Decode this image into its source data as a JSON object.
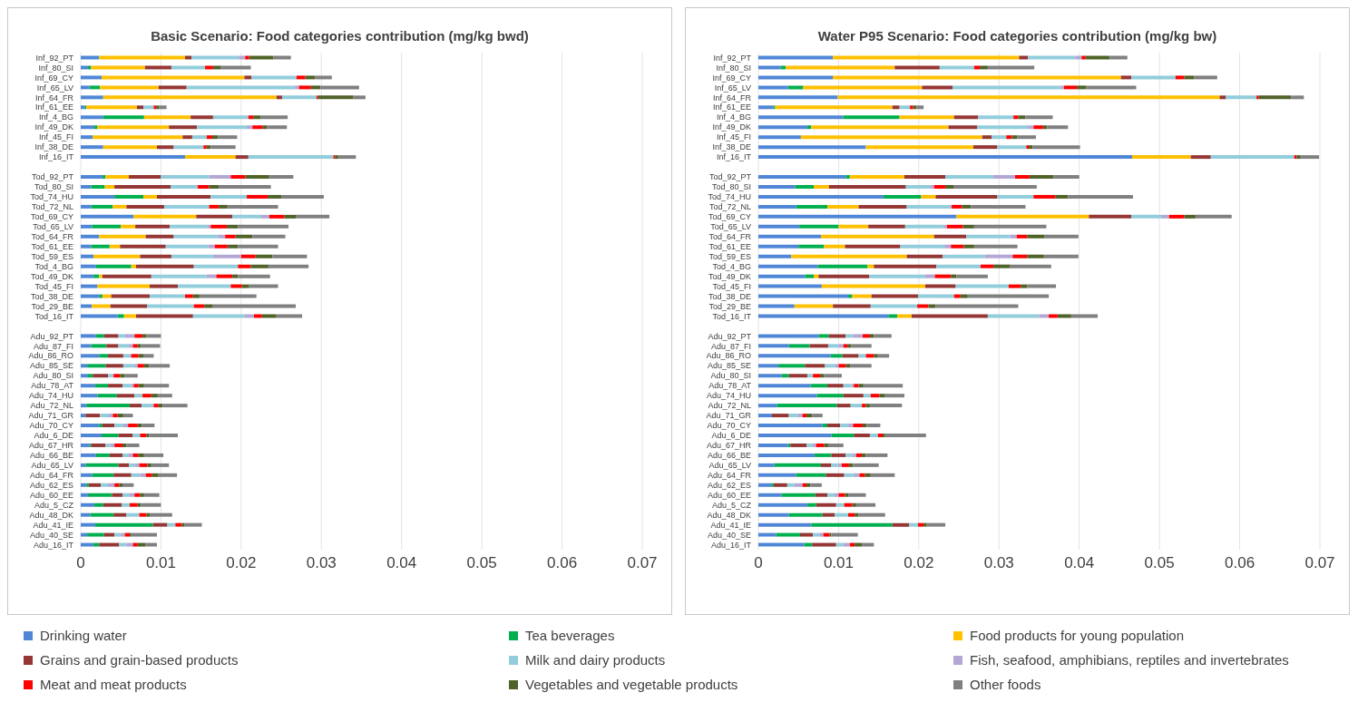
{
  "chart_data": [
    {
      "type": "bar",
      "orientation": "horizontal",
      "stacked": true,
      "title": "Basic Scenario: Food categories contribution (mg/kg bwd)",
      "categories": [
        "Inf_92_PT",
        "Inf_80_SI",
        "Inf_69_CY",
        "Inf_65_LV",
        "Inf_64_FR",
        "Inf_61_EE",
        "Inf_4_BG",
        "Inf_49_DK",
        "Inf_45_FI",
        "Inf_38_DE",
        "Inf_16_IT",
        null,
        "Tod_92_PT",
        "Tod_80_SI",
        "Tod_74_HU",
        "Tod_72_NL",
        "Tod_69_CY",
        "Tod_65_LV",
        "Tod_64_FR",
        "Tod_61_EE",
        "Tod_59_ES",
        "Tod_4_BG",
        "Tod_49_DK",
        "Tod_45_FI",
        "Tod_38_DE",
        "Tod_29_BE",
        "Tod_16_IT",
        null,
        "Adu_92_PT",
        "Adu_87_FI",
        "Adu_86_RO",
        "Adu_85_SE",
        "Adu_80_SI",
        "Adu_78_AT",
        "Adu_74_HU",
        "Adu_72_NL",
        "Adu_71_GR",
        "Adu_70_CY",
        "Adu_6_DE",
        "Adu_67_HR",
        "Adu_66_BE",
        "Adu_65_LV",
        "Adu_64_FR",
        "Adu_62_ES",
        "Adu_60_EE",
        "Adu_5_CZ",
        "Adu_48_DK",
        "Adu_41_IE",
        "Adu_40_SE",
        "Adu_16_IT"
      ],
      "series": [
        {
          "name": "Drinking water",
          "color": "#4f87d6",
          "values": [
            0.0023,
            0.0009,
            0.0026,
            0.0011,
            0.0028,
            0.0005,
            0.0028,
            0.0017,
            0.0015,
            0.0028,
            0.013,
            null,
            0.0027,
            0.0013,
            0.0042,
            0.0013,
            0.0066,
            0.0014,
            0.0023,
            0.0013,
            0.0016,
            0.0019,
            0.0016,
            0.0021,
            0.0023,
            0.0014,
            0.0046,
            null,
            0.0019,
            0.0013,
            0.0023,
            0.0008,
            0.0009,
            0.0018,
            0.0021,
            0.0007,
            0.0006,
            0.0023,
            0.0026,
            0.0011,
            0.0019,
            0.0006,
            0.0014,
            0.0007,
            0.0009,
            0.0017,
            0.0012,
            0.0018,
            0.0008,
            0.0016
          ]
        },
        {
          "name": "Tea beverages",
          "color": "#00b050",
          "values": [
            0,
            0.0004,
            0,
            0.0013,
            0,
            0.0002,
            0.0051,
            0.0004,
            0,
            0,
            0,
            null,
            0.0004,
            0.0017,
            0.0036,
            0.0027,
            0,
            0.0036,
            0,
            0.0023,
            0,
            0.0044,
            0.0007,
            0,
            0.0004,
            0,
            0.0008,
            null,
            0.001,
            0.0019,
            0.0011,
            0.0023,
            0.0006,
            0.0016,
            0.0024,
            0.0054,
            0,
            0.0004,
            0.0021,
            0.0002,
            0.0017,
            0.0041,
            0.0027,
            0.0003,
            0.003,
            0.0011,
            0.0029,
            0.0072,
            0.0021,
            0.0007
          ]
        },
        {
          "name": "Food products for young population",
          "color": "#ffc000",
          "values": [
            0.0107,
            0.0067,
            0.0178,
            0.0073,
            0.0216,
            0.0063,
            0.0058,
            0.0089,
            0.0112,
            0.0067,
            0.0063,
            null,
            0.0029,
            0.0012,
            0.0017,
            0.0017,
            0.0078,
            0.0018,
            0.0058,
            0.0013,
            0.0058,
            0.0006,
            0.0004,
            0.0065,
            0.0011,
            0.0023,
            0.0015,
            null,
            0,
            0,
            0,
            0,
            0,
            0,
            0,
            0,
            0,
            0,
            0,
            0,
            0,
            0,
            0,
            0,
            0,
            0,
            0,
            0,
            0,
            0
          ]
        },
        {
          "name": "Grains and grain-based products",
          "color": "#953735",
          "values": [
            0.0008,
            0.0033,
            0.0009,
            0.0035,
            0.0007,
            0.0008,
            0.0028,
            0.0035,
            0.0012,
            0.0021,
            0.0016,
            null,
            0.004,
            0.007,
            0.0067,
            0.0047,
            0.0045,
            0.0043,
            0.0035,
            0.0057,
            0.0039,
            0.0072,
            0.0061,
            0.0035,
            0.0048,
            0.0046,
            0.0071,
            null,
            0.0018,
            0.0015,
            0.0019,
            0.0022,
            0.0019,
            0.0018,
            0.0022,
            0.0015,
            0.0018,
            0.0015,
            0.0018,
            0.0018,
            0.0016,
            0.0013,
            0.0022,
            0.0015,
            0.0013,
            0.0023,
            0.0016,
            0.0018,
            0.0013,
            0.0025
          ]
        },
        {
          "name": "Milk and dairy products",
          "color": "#92cddc",
          "values": [
            0.0059,
            0.0042,
            0.0056,
            0.0135,
            0.0043,
            0.0013,
            0.0044,
            0.0062,
            0.0018,
            0.0037,
            0.0106,
            null,
            0.006,
            0.0032,
            0.0045,
            0.0056,
            0.0036,
            0.0047,
            0.0055,
            0.0053,
            0.0052,
            0.0055,
            0.0069,
            0.0066,
            0.0044,
            0.0058,
            0.0064,
            null,
            0.0008,
            0.0013,
            0.0008,
            0.0014,
            0.0005,
            0.0011,
            0.001,
            0.0013,
            0.0011,
            0.0011,
            0.0009,
            0.0006,
            0.0007,
            0.0008,
            0.0011,
            0.0009,
            0.0009,
            0.001,
            0.0016,
            0.001,
            0.0008,
            0.0009
          ]
        },
        {
          "name": "Fish, seafood, amphibians, reptiles and invertebrates",
          "color": "#b4a7d6",
          "values": [
            0.0008,
            0,
            0,
            0.0005,
            0,
            0,
            0,
            0.0007,
            0,
            0,
            0,
            null,
            0.0027,
            0.0002,
            0,
            0,
            0.001,
            0.0004,
            0.0009,
            0.0008,
            0.0035,
            0,
            0.0012,
            0,
            0,
            0,
            0.0012,
            null,
            0.0012,
            0.0005,
            0.0002,
            0.0004,
            0.0002,
            0.0003,
            0,
            0.0002,
            0.0005,
            0.0006,
            0,
            0.0005,
            0.0006,
            0.0005,
            0.0007,
            0.0008,
            0.0006,
            0,
            0,
            0,
            0.0005,
            0.0008
          ]
        },
        {
          "name": "Meat and meat products",
          "color": "#ff0000",
          "values": [
            0.0005,
            0.001,
            0.0011,
            0.0015,
            0.0002,
            0.0003,
            0.0006,
            0.0013,
            0.0007,
            0.0004,
            0.0002,
            null,
            0.0018,
            0.0014,
            0.0026,
            0.0012,
            0.0019,
            0.002,
            0.0013,
            0.0016,
            0.0018,
            0.0016,
            0.002,
            0.0014,
            0.001,
            0.0013,
            0.001,
            null,
            0.001,
            0.0006,
            0.0009,
            0.0008,
            0.0008,
            0.0006,
            0.0011,
            0.0006,
            0.0006,
            0.0012,
            0.0008,
            0.001,
            0.0007,
            0.001,
            0.0008,
            0.0006,
            0.0007,
            0.001,
            0.0009,
            0.0008,
            0.0006,
            0.0006
          ]
        },
        {
          "name": "Vegetables and vegetable products",
          "color": "#4f6228",
          "values": [
            0.003,
            0.001,
            0.0012,
            0.0012,
            0.0044,
            0.0004,
            0.0009,
            0.0005,
            0.0007,
            0.0005,
            0.0004,
            null,
            0.003,
            0.0012,
            0.0017,
            0.0011,
            0.0014,
            0.0014,
            0.0021,
            0.0013,
            0.0021,
            0.0022,
            0.0007,
            0.0009,
            0.0008,
            0.001,
            0.0018,
            null,
            0.0005,
            0.0004,
            0.0006,
            0.0006,
            0.0006,
            0.0007,
            0.0008,
            0.0005,
            0.0007,
            0.0005,
            0.0003,
            0.0005,
            0.0007,
            0.0005,
            0.0008,
            0.0004,
            0.0005,
            0.0004,
            0.0004,
            0.0003,
            0.0002,
            0.001
          ]
        },
        {
          "name": "Other foods",
          "color": "#808080",
          "values": [
            0.0022,
            0.0037,
            0.0021,
            0.0048,
            0.0015,
            0.0009,
            0.0034,
            0.0025,
            0.0024,
            0.0031,
            0.0022,
            null,
            0.003,
            0.0065,
            0.0053,
            0.0063,
            0.0042,
            0.0063,
            0.0041,
            0.005,
            0.0043,
            0.005,
            0.004,
            0.0036,
            0.0071,
            0.0104,
            0.0032,
            null,
            0.0018,
            0.0024,
            0.0013,
            0.0026,
            0.0016,
            0.0031,
            0.0018,
            0.0031,
            0.0012,
            0.0016,
            0.0036,
            0.0016,
            0.0024,
            0.0022,
            0.0023,
            0.0014,
            0.0019,
            0.0025,
            0.0028,
            0.0022,
            0.0032,
            0.0014
          ]
        }
      ],
      "xlim": [
        0,
        0.07
      ],
      "xticks": [
        0,
        0.01,
        0.02,
        0.03,
        0.04,
        0.05,
        0.06,
        0.07
      ],
      "grid": "x",
      "legend": "bottom"
    },
    {
      "type": "bar",
      "orientation": "horizontal",
      "stacked": true,
      "title": "Water P95 Scenario: Food categories contribution (mg/kg bw)",
      "categories": [
        "Inf_92_PT",
        "Inf_80_SI",
        "Inf_69_CY",
        "Inf_65_LV",
        "Inf_64_FR",
        "Inf_61_EE",
        "Inf_4_BG",
        "Inf_49_DK",
        "Inf_45_FI",
        "Inf_38_DE",
        "Inf_16_IT",
        null,
        "Tod_92_PT",
        "Tod_80_SI",
        "Tod_74_HU",
        "Tod_72_NL",
        "Tod_69_CY",
        "Tod_65_LV",
        "Tod_64_FR",
        "Tod_61_EE",
        "Tod_59_ES",
        "Tod_4_BG",
        "Tod_49_DK",
        "Tod_45_FI",
        "Tod_38_DE",
        "Tod_29_BE",
        "Tod_16_IT",
        null,
        "Adu_92_PT",
        "Adu_87_FI",
        "Adu_86_RO",
        "Adu_85_SE",
        "Adu_80_SI",
        "Adu_78_AT",
        "Adu_74_HU",
        "Adu_72_NL",
        "Adu_71_GR",
        "Adu_70_CY",
        "Adu_6_DE",
        "Adu_67_HR",
        "Adu_66_BE",
        "Adu_65_LV",
        "Adu_64_FR",
        "Adu_62_ES",
        "Adu_60_EE",
        "Adu_5_CZ",
        "Adu_48_DK",
        "Adu_41_IE",
        "Adu_40_SE",
        "Adu_16_IT"
      ],
      "series": [
        {
          "color": "#4f87d6",
          "values": [
            0.0093,
            0.0028,
            0.0093,
            0.0037,
            0.0099,
            0.0019,
            0.0106,
            0.0061,
            0.0053,
            0.0134,
            0.0466,
            null,
            0.0109,
            0.0046,
            0.0156,
            0.0047,
            0.0247,
            0.0051,
            0.0078,
            0.005,
            0.0041,
            0.0074,
            0.0058,
            0.0079,
            0.0112,
            0.0045,
            0.0162,
            null,
            0.0075,
            0.0038,
            0.009,
            0.0025,
            0.0029,
            0.0065,
            0.0073,
            0.0023,
            0.0017,
            0.008,
            0.0091,
            0.0037,
            0.007,
            0.002,
            0.0047,
            0.0016,
            0.0029,
            0.0061,
            0.0038,
            0.0066,
            0.0022,
            0.0057
          ]
        },
        {
          "color": "#00b050",
          "values": [
            0,
            0.0006,
            0,
            0.0019,
            0,
            0.0002,
            0.007,
            0.0005,
            0,
            0,
            0,
            null,
            0.0005,
            0.0023,
            0.0047,
            0.0039,
            0,
            0.0049,
            0,
            0.0032,
            0,
            0.0062,
            0.0011,
            0,
            0.0005,
            0,
            0.0011,
            null,
            0.0013,
            0.0026,
            0.0015,
            0.0033,
            0.0009,
            0.0021,
            0.0033,
            0.0075,
            0,
            0.0006,
            0.0028,
            0.0003,
            0.0021,
            0.0058,
            0.0037,
            0.0003,
            0.0042,
            0.0011,
            0.0042,
            0.0101,
            0.003,
            0.001
          ]
        },
        {
          "color": "#ffc000",
          "values": [
            0.0232,
            0.0136,
            0.0359,
            0.0148,
            0.0476,
            0.0146,
            0.0068,
            0.0171,
            0.0226,
            0.0134,
            0.0073,
            null,
            0.0068,
            0.0019,
            0.0018,
            0.0039,
            0.0165,
            0.0037,
            0.0141,
            0.0026,
            0.0144,
            0.0008,
            0.0006,
            0.0129,
            0.0024,
            0.0048,
            0.0018,
            null,
            0,
            0,
            0,
            0,
            0,
            0,
            0,
            0,
            0,
            0,
            0,
            0,
            0,
            0,
            0,
            0,
            0,
            0,
            0,
            0,
            0,
            0
          ]
        },
        {
          "color": "#953735",
          "values": [
            0.0011,
            0.0056,
            0.0013,
            0.0038,
            0.0008,
            0.0009,
            0.003,
            0.0036,
            0.0012,
            0.003,
            0.0025,
            null,
            0.0051,
            0.0096,
            0.0077,
            0.006,
            0.0053,
            0.0046,
            0.004,
            0.0069,
            0.0045,
            0.0078,
            0.0063,
            0.0038,
            0.0058,
            0.0047,
            0.0095,
            null,
            0.0021,
            0.0023,
            0.002,
            0.0025,
            0.0023,
            0.002,
            0.0025,
            0.0017,
            0.0021,
            0.0016,
            0.002,
            0.002,
            0.0018,
            0.0013,
            0.0023,
            0.0017,
            0.0015,
            0.0025,
            0.0015,
            0.0021,
            0.0016,
            0.003
          ]
        },
        {
          "color": "#92cddc",
          "values": [
            0.0059,
            0.0043,
            0.0055,
            0.0134,
            0.0038,
            0.0013,
            0.0044,
            0.0063,
            0.0018,
            0.0036,
            0.0104,
            null,
            0.006,
            0.003,
            0.0045,
            0.0054,
            0.0037,
            0.0048,
            0.0055,
            0.0055,
            0.0052,
            0.0055,
            0.007,
            0.0066,
            0.0045,
            0.0058,
            0.0064,
            null,
            0.0009,
            0.0013,
            0.0009,
            0.0013,
            0.0007,
            0.001,
            0.0009,
            0.0014,
            0.0011,
            0.001,
            0.001,
            0.0007,
            0.0008,
            0.0008,
            0.0012,
            0.0009,
            0.0009,
            0.001,
            0.0017,
            0.0011,
            0.0008,
            0.0009
          ]
        },
        {
          "color": "#b4a7d6",
          "values": [
            0.0008,
            0,
            0,
            0.0005,
            0,
            0,
            0,
            0.0007,
            0,
            0,
            0,
            null,
            0.0027,
            0.0005,
            0,
            0.0002,
            0.001,
            0.0004,
            0.0008,
            0.0008,
            0.0035,
            0,
            0.0012,
            0,
            0,
            0,
            0.0012,
            null,
            0.0012,
            0.0006,
            0,
            0.0004,
            0,
            0.0003,
            0,
            0,
            0.0006,
            0.0006,
            0,
            0.0005,
            0.0005,
            0.0005,
            0.0007,
            0.001,
            0.0005,
            0,
            0,
            0,
            0.0005,
            0.0008
          ]
        },
        {
          "color": "#ff0000",
          "values": [
            0.0005,
            0.0007,
            0.0011,
            0.0016,
            0.0003,
            0.0004,
            0.0006,
            0.0012,
            0.0007,
            0.0003,
            0.0003,
            null,
            0.0018,
            0.0014,
            0.0027,
            0.0013,
            0.0019,
            0.002,
            0.0013,
            0.0016,
            0.0018,
            0.0016,
            0.002,
            0.0015,
            0.0008,
            0.0014,
            0.0011,
            null,
            0.0009,
            0.0005,
            0.001,
            0.0009,
            0.0009,
            0.0006,
            0.0011,
            0.0005,
            0.0005,
            0.0012,
            0.0006,
            0.001,
            0.0007,
            0.0009,
            0.0007,
            0.0005,
            0.0008,
            0.001,
            0.0008,
            0.0007,
            0.0008,
            0.0006
          ]
        },
        {
          "color": "#4f6228",
          "values": [
            0.003,
            0.001,
            0.0012,
            0.0012,
            0.004,
            0.0004,
            0.0009,
            0.0005,
            0.0007,
            0.0005,
            0.0005,
            null,
            0.003,
            0.0011,
            0.0016,
            0.0011,
            0.0014,
            0.0014,
            0.0022,
            0.0013,
            0.0021,
            0.0021,
            0.0007,
            0.0008,
            0.0009,
            0.0009,
            0.0017,
            null,
            0.0005,
            0.0005,
            0.0005,
            0.0006,
            0.0005,
            0.0006,
            0.0007,
            0.0005,
            0.0007,
            0.0005,
            0.0003,
            0.0005,
            0.0005,
            0.0005,
            0.0007,
            0.0005,
            0.0004,
            0.0005,
            0.0005,
            0.0004,
            0.0002,
            0.0009
          ]
        },
        {
          "color": "#808080",
          "values": [
            0.0022,
            0.0058,
            0.0029,
            0.0062,
            0.0016,
            0.0009,
            0.0034,
            0.0026,
            0.0023,
            0.0059,
            0.0023,
            null,
            0.0032,
            0.0103,
            0.0081,
            0.0068,
            0.0045,
            0.009,
            0.0042,
            0.0054,
            0.0043,
            0.0051,
            0.0039,
            0.0036,
            0.0101,
            0.0103,
            0.0033,
            null,
            0.0022,
            0.0025,
            0.0014,
            0.0026,
            0.0022,
            0.0049,
            0.0024,
            0.004,
            0.0013,
            0.0017,
            0.0051,
            0.0019,
            0.0027,
            0.0032,
            0.003,
            0.0014,
            0.0022,
            0.0024,
            0.0033,
            0.0023,
            0.0033,
            0.0015
          ]
        }
      ],
      "xlim": [
        0,
        0.07
      ],
      "xticks": [
        0,
        0.01,
        0.02,
        0.03,
        0.04,
        0.05,
        0.06,
        0.07
      ],
      "grid": "x"
    }
  ]
}
